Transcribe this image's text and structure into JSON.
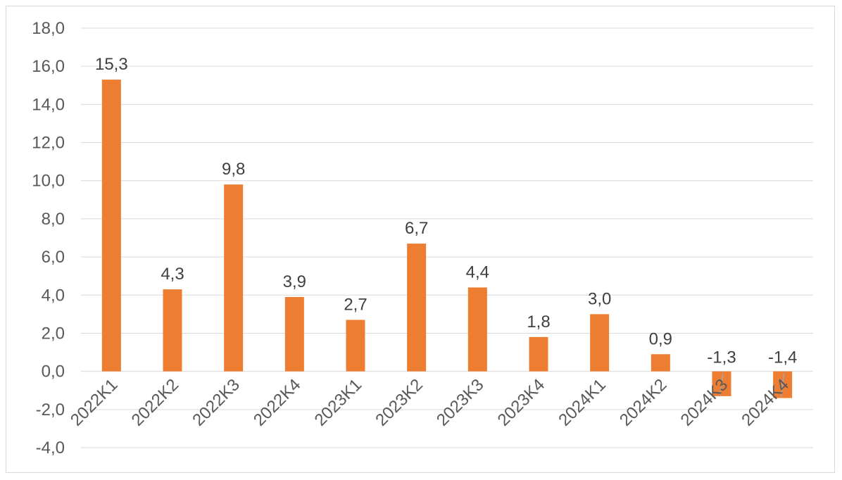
{
  "chart_data": {
    "type": "bar",
    "categories": [
      "2022K1",
      "2022K2",
      "2022K3",
      "2022K4",
      "2023K1",
      "2023K2",
      "2023K3",
      "2023K4",
      "2024K1",
      "2024K2",
      "2024K3",
      "2024K4"
    ],
    "values": [
      15.3,
      4.3,
      9.8,
      3.9,
      2.7,
      6.7,
      4.4,
      1.8,
      3.0,
      0.9,
      -1.3,
      -1.4
    ],
    "value_labels": [
      "15,3",
      "4,3",
      "9,8",
      "3,9",
      "2,7",
      "6,7",
      "4,4",
      "1,8",
      "3,0",
      "0,9",
      "-1,3",
      "-1,4"
    ],
    "ylim": [
      -4,
      18
    ],
    "yticks": [
      -4,
      -2,
      0,
      2,
      4,
      6,
      8,
      10,
      12,
      14,
      16,
      18
    ],
    "ytick_labels": [
      "-4,0",
      "-2,0",
      "0,0",
      "2,0",
      "4,0",
      "6,0",
      "8,0",
      "10,0",
      "12,0",
      "14,0",
      "16,0",
      "18,0"
    ],
    "bar_color": "#ED7D31",
    "grid": true,
    "legend": "none"
  }
}
